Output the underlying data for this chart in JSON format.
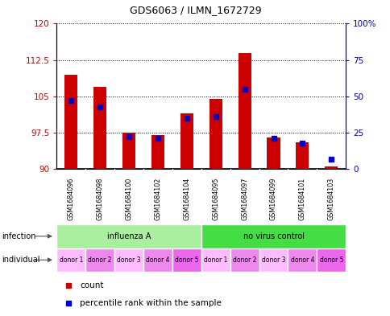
{
  "title": "GDS6063 / ILMN_1672729",
  "samples": [
    "GSM1684096",
    "GSM1684098",
    "GSM1684100",
    "GSM1684102",
    "GSM1684104",
    "GSM1684095",
    "GSM1684097",
    "GSM1684099",
    "GSM1684101",
    "GSM1684103"
  ],
  "red_values": [
    109.5,
    107.0,
    97.5,
    97.0,
    101.5,
    104.5,
    114.0,
    96.5,
    95.5,
    90.5
  ],
  "blue_values": [
    47,
    43,
    22,
    21,
    35,
    36,
    55,
    21,
    18,
    7
  ],
  "ylim_left": [
    90,
    120
  ],
  "ylim_right": [
    0,
    100
  ],
  "yticks_left": [
    90,
    97.5,
    105,
    112.5,
    120
  ],
  "yticks_right": [
    0,
    25,
    50,
    75,
    100
  ],
  "ytick_labels_left": [
    "90",
    "97.5",
    "105",
    "112.5",
    "120"
  ],
  "ytick_labels_right": [
    "0",
    "25",
    "50",
    "75",
    "100%"
  ],
  "infection_groups": [
    {
      "label": "influenza A",
      "start": 0,
      "end": 5,
      "color": "#AAEEA0"
    },
    {
      "label": "no virus control",
      "start": 5,
      "end": 10,
      "color": "#44DD44"
    }
  ],
  "individual_labels": [
    "donor 1",
    "donor 2",
    "donor 3",
    "donor 4",
    "donor 5",
    "donor 1",
    "donor 2",
    "donor 3",
    "donor 4",
    "donor 5"
  ],
  "ind_colors": [
    "#FFBBFF",
    "#EE88EE",
    "#FFBBFF",
    "#EE88EE",
    "#EE66EE",
    "#FFBBFF",
    "#EE88EE",
    "#FFBBFF",
    "#EE88EE",
    "#EE66EE"
  ],
  "bar_color": "#CC0000",
  "blue_color": "#0000CC",
  "left_axis_color": "#CC0000",
  "right_axis_color": "#0000BB",
  "base_value": 90,
  "plot_bg": "#FFFFFF",
  "sample_bg": "#CCCCCC",
  "bar_width": 0.45
}
